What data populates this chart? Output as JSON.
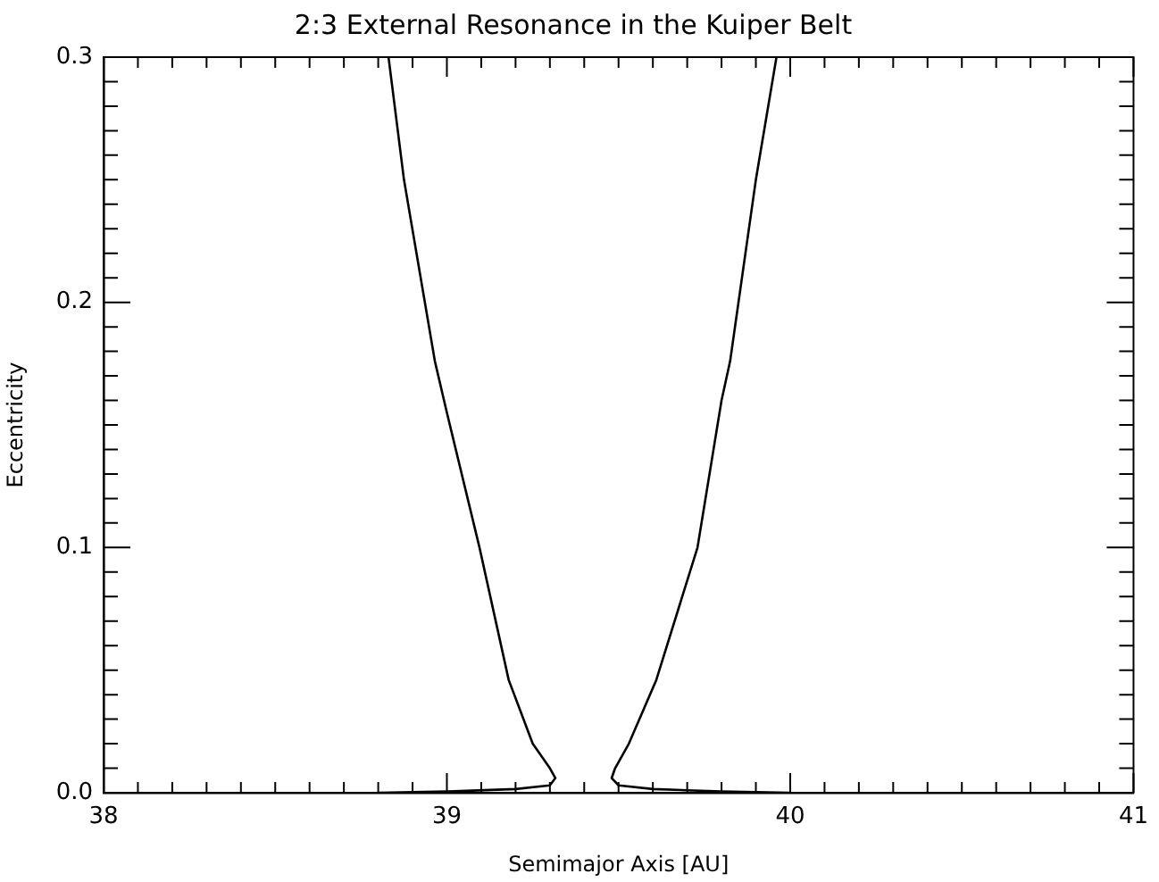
{
  "chart_data": {
    "type": "line",
    "title": "2:3 External Resonance in the Kuiper Belt",
    "xlabel": "Semimajor Axis [AU]",
    "ylabel": "Eccentricity",
    "xlim": [
      38,
      41
    ],
    "ylim": [
      0,
      0.3
    ],
    "xticks": [
      38,
      {
        "value": 38.1,
        "label": null
      },
      {
        "value": 38.2,
        "label": null
      },
      {
        "value": 38.3,
        "label": null
      },
      {
        "value": 38.4,
        "label": null
      },
      {
        "value": 38.5,
        "label": null
      },
      {
        "value": 38.6,
        "label": null
      },
      {
        "value": 38.7,
        "label": null
      },
      {
        "value": 38.8,
        "label": null
      },
      {
        "value": 38.9,
        "label": null
      },
      39,
      {
        "value": 39.1,
        "label": null
      },
      {
        "value": 39.2,
        "label": null
      },
      {
        "value": 39.3,
        "label": null
      },
      {
        "value": 39.4,
        "label": null
      },
      {
        "value": 39.5,
        "label": null
      },
      {
        "value": 39.6,
        "label": null
      },
      {
        "value": 39.7,
        "label": null
      },
      {
        "value": 39.8,
        "label": null
      },
      {
        "value": 39.9,
        "label": null
      },
      40,
      {
        "value": 40.1,
        "label": null
      },
      {
        "value": 40.2,
        "label": null
      },
      {
        "value": 40.3,
        "label": null
      },
      {
        "value": 40.4,
        "label": null
      },
      {
        "value": 40.5,
        "label": null
      },
      {
        "value": 40.6,
        "label": null
      },
      {
        "value": 40.7,
        "label": null
      },
      {
        "value": 40.8,
        "label": null
      },
      {
        "value": 40.9,
        "label": null
      },
      41
    ],
    "yticks": [
      {
        "value": 0,
        "label": "0.0"
      },
      {
        "value": 0.01,
        "label": null
      },
      {
        "value": 0.02,
        "label": null
      },
      {
        "value": 0.03,
        "label": null
      },
      {
        "value": 0.04,
        "label": null
      },
      {
        "value": 0.05,
        "label": null
      },
      {
        "value": 0.06,
        "label": null
      },
      {
        "value": 0.07,
        "label": null
      },
      {
        "value": 0.08,
        "label": null
      },
      {
        "value": 0.09,
        "label": null
      },
      0.1,
      {
        "value": 0.11,
        "label": null
      },
      {
        "value": 0.12,
        "label": null
      },
      {
        "value": 0.13,
        "label": null
      },
      {
        "value": 0.14,
        "label": null
      },
      {
        "value": 0.15,
        "label": null
      },
      {
        "value": 0.16,
        "label": null
      },
      {
        "value": 0.17,
        "label": null
      },
      {
        "value": 0.18,
        "label": null
      },
      {
        "value": 0.19,
        "label": null
      },
      0.2,
      {
        "value": 0.21,
        "label": null
      },
      {
        "value": 0.22,
        "label": null
      },
      {
        "value": 0.23,
        "label": null
      },
      {
        "value": 0.24,
        "label": null
      },
      {
        "value": 0.25,
        "label": null
      },
      {
        "value": 0.26,
        "label": null
      },
      {
        "value": 0.27,
        "label": null
      },
      {
        "value": 0.28,
        "label": null
      },
      {
        "value": 0.29,
        "label": null
      },
      0.3
    ],
    "grid": false,
    "legend": false,
    "marker": "none",
    "line_style": "solid",
    "series": [
      {
        "color": "#000000",
        "x": [
          38.83,
          38.875,
          38.965,
          39.0,
          39.095,
          39.18,
          39.25,
          39.3,
          39.316,
          39.3,
          39.2,
          39.0,
          38.8
        ],
        "values": [
          0.3,
          0.25,
          0.176,
          0.155,
          0.1,
          0.046,
          0.02,
          0.01,
          0.006,
          0.003,
          0.0015,
          0.0005,
          0
        ]
      },
      {
        "color": "#000000",
        "x": [
          39.96,
          39.9,
          39.825,
          39.8,
          39.73,
          39.61,
          39.53,
          39.49,
          39.48,
          39.5,
          39.6,
          39.8,
          40.0
        ],
        "values": [
          0.3,
          0.25,
          0.176,
          0.16,
          0.1,
          0.046,
          0.02,
          0.01,
          0.006,
          0.003,
          0.0015,
          0.0005,
          0
        ]
      }
    ]
  }
}
